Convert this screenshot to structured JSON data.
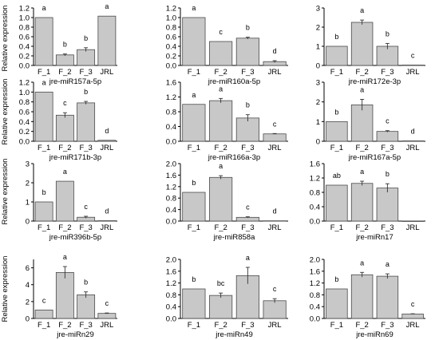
{
  "figure": {
    "ylabel": "Relative expression"
  },
  "chart_data": [
    {
      "type": "bar",
      "xlabel": "jre-miR157a-5p",
      "categories": [
        "F_1",
        "F_2",
        "F_3",
        "JRL"
      ],
      "values": [
        1.0,
        0.22,
        0.33,
        1.03
      ],
      "errors": [
        0.0,
        0.02,
        0.04,
        0.0
      ],
      "letters": [
        "a",
        "b",
        "b",
        "a"
      ],
      "ylim": [
        0,
        1.2
      ],
      "yticks": [
        "0.0",
        "0.2",
        "0.4",
        "0.6",
        "0.8",
        "1.0",
        "1.2"
      ],
      "ytick_values": [
        0,
        0.2,
        0.4,
        0.6,
        0.8,
        1.0,
        1.2
      ],
      "bar_color": "#c8c8c8"
    },
    {
      "type": "bar",
      "xlabel": "jre-miR160a-5p",
      "categories": [
        "F_1",
        "F_2",
        "F_3",
        "JRL"
      ],
      "values": [
        1.0,
        0.5,
        0.57,
        0.08
      ],
      "errors": [
        0.0,
        0.0,
        0.02,
        0.02
      ],
      "letters": [
        "a",
        "c",
        "b",
        "d"
      ],
      "ylim": [
        0,
        1.2
      ],
      "yticks": [
        "0.0",
        "0.2",
        "0.4",
        "0.6",
        "0.8",
        "1.0",
        "1.2"
      ],
      "ytick_values": [
        0,
        0.2,
        0.4,
        0.6,
        0.8,
        1.0,
        1.2
      ],
      "bar_color": "#c8c8c8"
    },
    {
      "type": "bar",
      "xlabel": "jre-miR172e-3p",
      "categories": [
        "F_1",
        "F_2",
        "F_3",
        "JRL"
      ],
      "values": [
        1.0,
        2.25,
        1.0,
        0.02
      ],
      "errors": [
        0.0,
        0.12,
        0.15,
        0.0
      ],
      "letters": [
        "b",
        "a",
        "b",
        "c"
      ],
      "ylim": [
        0,
        3
      ],
      "yticks": [
        "0",
        "1",
        "2",
        "3"
      ],
      "ytick_values": [
        0,
        1,
        2,
        3
      ],
      "bar_color": "#c8c8c8"
    },
    {
      "type": "bar",
      "xlabel": "jre-miR171b-3p",
      "categories": [
        "F_1",
        "F_2",
        "F_3",
        "JRL"
      ],
      "values": [
        1.0,
        0.53,
        0.78,
        0.02
      ],
      "errors": [
        0.0,
        0.05,
        0.03,
        0.0
      ],
      "letters": [
        "a",
        "c",
        "b",
        "d"
      ],
      "ylim": [
        0,
        1.2
      ],
      "yticks": [
        "0.0",
        "0.2",
        "0.4",
        "0.6",
        "0.8",
        "1.0",
        "1.2"
      ],
      "ytick_values": [
        0,
        0.2,
        0.4,
        0.6,
        0.8,
        1.0,
        1.2
      ],
      "bar_color": "#c8c8c8"
    },
    {
      "type": "bar",
      "xlabel": "jre-miR166a-3p",
      "categories": [
        "F_1",
        "F_2",
        "F_3",
        "JRL"
      ],
      "values": [
        1.0,
        1.1,
        0.63,
        0.2
      ],
      "errors": [
        0.0,
        0.06,
        0.09,
        0.01
      ],
      "letters": [
        "a",
        "a",
        "b",
        "c"
      ],
      "ylim": [
        0,
        1.6
      ],
      "yticks": [
        "0.0",
        "0.4",
        "0.8",
        "1.2",
        "1.6"
      ],
      "ytick_values": [
        0,
        0.4,
        0.8,
        1.2,
        1.6
      ],
      "bar_color": "#c8c8c8"
    },
    {
      "type": "bar",
      "xlabel": "jre-miR167a-5p",
      "categories": [
        "F_1",
        "F_2",
        "F_3",
        "JRL"
      ],
      "values": [
        1.0,
        1.85,
        0.5,
        0.02
      ],
      "errors": [
        0.0,
        0.28,
        0.04,
        0.0
      ],
      "letters": [
        "b",
        "a",
        "c",
        "d"
      ],
      "ylim": [
        0,
        3
      ],
      "yticks": [
        "0",
        "1",
        "2",
        "3"
      ],
      "ytick_values": [
        0,
        1,
        2,
        3
      ],
      "bar_color": "#c8c8c8"
    },
    {
      "type": "bar",
      "xlabel": "jre-miR396b-5p",
      "categories": [
        "F_1",
        "F_2",
        "F_3",
        "JRL"
      ],
      "values": [
        1.0,
        2.08,
        0.2,
        0.02
      ],
      "errors": [
        0.0,
        0.0,
        0.05,
        0.0
      ],
      "letters": [
        "b",
        "a",
        "c",
        "d"
      ],
      "ylim": [
        0,
        3
      ],
      "yticks": [
        "0",
        "1",
        "2",
        "3"
      ],
      "ytick_values": [
        0,
        1,
        2,
        3
      ],
      "bar_color": "#c8c8c8"
    },
    {
      "type": "bar",
      "xlabel": "jre-miR858a",
      "categories": [
        "F_1",
        "F_2",
        "F_3",
        "JRL"
      ],
      "values": [
        1.0,
        1.52,
        0.13,
        0.01
      ],
      "errors": [
        0.0,
        0.06,
        0.02,
        0.0
      ],
      "letters": [
        "b",
        "a",
        "c",
        "d"
      ],
      "ylim": [
        0,
        2.0
      ],
      "yticks": [
        "0.0",
        "0.4",
        "0.8",
        "1.2",
        "1.6",
        "2.0"
      ],
      "ytick_values": [
        0,
        0.4,
        0.8,
        1.2,
        1.6,
        2.0
      ],
      "bar_color": "#c8c8c8"
    },
    {
      "type": "bar",
      "xlabel": "jre-miRn17",
      "categories": [
        "F_1",
        "F_2",
        "F_3",
        "JRL"
      ],
      "values": [
        1.0,
        1.05,
        0.92,
        0.0
      ],
      "errors": [
        0.0,
        0.06,
        0.12,
        0.0
      ],
      "letters": [
        "ab",
        "a",
        "b",
        ""
      ],
      "ylim": [
        0,
        1.6
      ],
      "yticks": [
        "0.0",
        "0.4",
        "0.8",
        "1.2",
        "1.6"
      ],
      "ytick_values": [
        0,
        0.4,
        0.8,
        1.2,
        1.6
      ],
      "bar_color": "#c8c8c8"
    },
    {
      "type": "bar",
      "xlabel": "jre-miRn29",
      "categories": [
        "F_1",
        "F_2",
        "F_3",
        "JRL"
      ],
      "values": [
        1.0,
        5.45,
        2.8,
        0.6
      ],
      "errors": [
        0.0,
        0.7,
        0.35,
        0.05
      ],
      "letters": [
        "c",
        "a",
        "b",
        "c"
      ],
      "ylim": [
        0,
        7
      ],
      "yticks": [
        "0",
        "2",
        "4",
        "6"
      ],
      "ytick_values": [
        0,
        2,
        4,
        6
      ],
      "bar_color": "#c8c8c8"
    },
    {
      "type": "bar",
      "xlabel": "jre-miRn49",
      "categories": [
        "F_1",
        "F_2",
        "F_3",
        "JRL"
      ],
      "values": [
        1.0,
        0.78,
        1.45,
        0.6
      ],
      "errors": [
        0.0,
        0.08,
        0.28,
        0.07
      ],
      "letters": [
        "b",
        "bc",
        "a",
        "c"
      ],
      "ylim": [
        0,
        2.0
      ],
      "yticks": [
        "0.0",
        "0.4",
        "0.8",
        "1.2",
        "1.6",
        "2.0"
      ],
      "ytick_values": [
        0,
        0.4,
        0.8,
        1.2,
        1.6,
        2.0
      ],
      "bar_color": "#c8c8c8"
    },
    {
      "type": "bar",
      "xlabel": "jre-miRn69",
      "categories": [
        "F_1",
        "F_2",
        "F_3",
        "JRL"
      ],
      "values": [
        1.0,
        1.48,
        1.43,
        0.15
      ],
      "errors": [
        0.0,
        0.08,
        0.08,
        0.01
      ],
      "letters": [
        "b",
        "a",
        "a",
        "c"
      ],
      "ylim": [
        0,
        2.0
      ],
      "yticks": [
        "0.0",
        "0.4",
        "0.8",
        "1.2",
        "1.6",
        "2.0"
      ],
      "ytick_values": [
        0,
        0.4,
        0.8,
        1.2,
        1.6,
        2.0
      ],
      "bar_color": "#c8c8c8"
    }
  ]
}
